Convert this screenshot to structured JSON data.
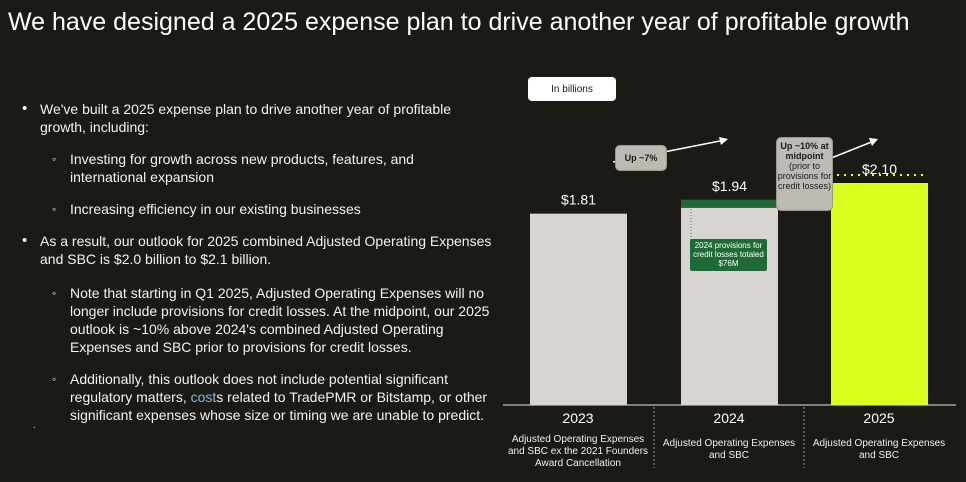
{
  "page": {
    "title": "We have designed a 2025 expense plan to drive another year of profitable growth"
  },
  "bullets": {
    "b1": "We've built a 2025 expense plan to drive another year of profitable growth, including:",
    "b1_sub1": "Investing for growth across new products, features, and international expansion",
    "b1_sub2": "Increasing efficiency in our existing businesses",
    "b2": "As a result, our outlook for 2025 combined Adjusted Operating Expenses and SBC is $2.0 billion to $2.1 billion.",
    "b2_sub1": "Note that starting in Q1 2025, Adjusted Operating Expenses will no longer include provisions for credit losses. At the midpoint, our 2025 outlook is ~10% above 2024's combined Adjusted Operating Expenses and SBC prior to provisions for credit losses.",
    "b2_sub2_pre": "Additionally, this outlook does not include potential significant regulatory matters, ",
    "b2_sub2_hl": "cost",
    "b2_sub2_post": "s related to TradePMR or Bitstamp, or other significant expenses whose size or timing we are unable to predict.",
    "stray": "."
  },
  "chart_data": {
    "type": "bar",
    "units_label": "In billions",
    "categories": [
      "2023",
      "2024",
      "2025"
    ],
    "captions": [
      "Adjusted Operating Expenses and SBC ex the 2021 Founders Award Cancellation",
      "Adjusted Operating Expenses and SBC",
      "Adjusted Operating Expenses and SBC"
    ],
    "values": [
      1.81,
      1.94,
      2.1
    ],
    "value_labels": [
      "$1.81",
      "$1.94",
      "$2.10"
    ],
    "provision_2024": 0.076,
    "provision_label": "2024 provisions for credit losses totaled $76M",
    "range_2025": [
      2.0,
      2.1
    ],
    "callouts": {
      "c1": "Up ~7%",
      "c2_bold": "Up ~10% at midpoint",
      "c2_rest": "(prior to provisions for credit losses)"
    },
    "ylim": [
      0,
      2.1
    ],
    "colors": {
      "bar_gray": "#d8d5d0",
      "bar_2025": "#d8ff1d",
      "provision_green": "#1f6b37",
      "dotted": "#e8ff40",
      "background": "#1c1a14"
    }
  }
}
